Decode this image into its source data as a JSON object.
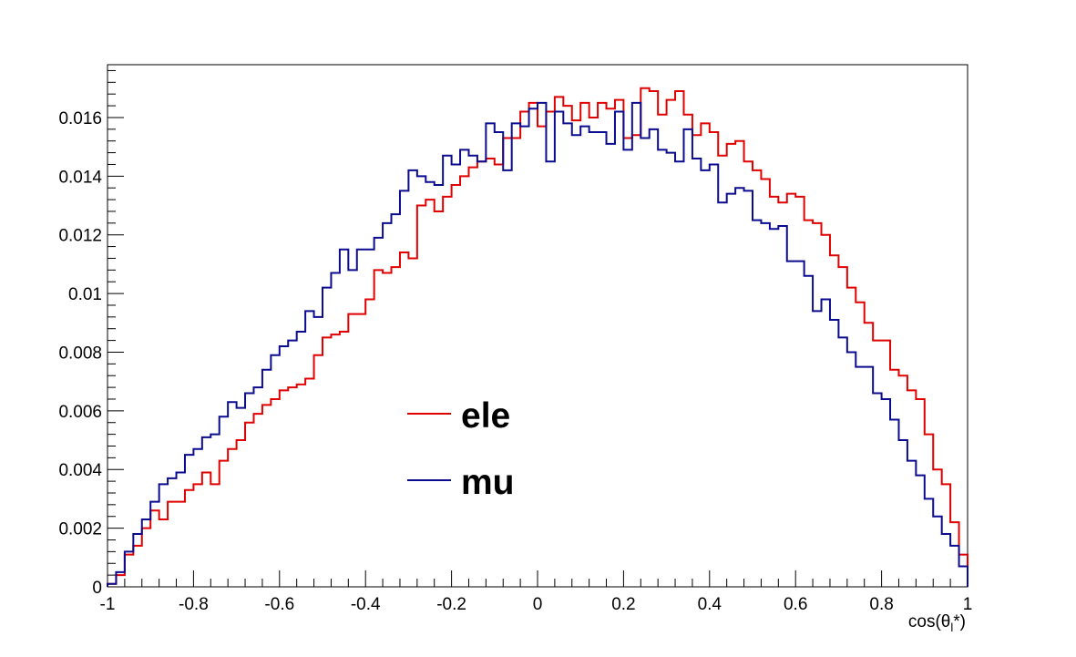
{
  "chart_data": {
    "type": "line",
    "step": true,
    "title": "",
    "xlabel_main": "cos(θ",
    "xlabel_sub": "l",
    "xlabel_end": "*)",
    "ylabel": "",
    "xlim": [
      -1,
      1
    ],
    "ylim": [
      0,
      0.0178
    ],
    "x_ticks": [
      -1,
      -0.8,
      -0.6,
      -0.4,
      -0.2,
      0,
      0.2,
      0.4,
      0.6,
      0.8,
      1
    ],
    "x_tick_labels": [
      "-1",
      "-0.8",
      "-0.6",
      "-0.4",
      "-0.2",
      "0",
      "0.2",
      "0.4",
      "0.6",
      "0.8",
      "1"
    ],
    "y_ticks": [
      0,
      0.002,
      0.004,
      0.006,
      0.008,
      0.01,
      0.012,
      0.014,
      0.016
    ],
    "y_tick_labels": [
      "0",
      "0.002",
      "0.004",
      "0.006",
      "0.008",
      "0.01",
      "0.012",
      "0.014",
      "0.016"
    ],
    "grid": false,
    "legend_position": "center-left",
    "bin_edges": {
      "start": -1,
      "stop": 1,
      "count": 100
    },
    "series": [
      {
        "name": "ele",
        "color": "#e00000",
        "values": [
          0.0001,
          0.0004,
          0.0011,
          0.0014,
          0.002,
          0.0026,
          0.0023,
          0.0029,
          0.0029,
          0.0033,
          0.0035,
          0.0039,
          0.0035,
          0.0043,
          0.0047,
          0.005,
          0.0056,
          0.0059,
          0.0062,
          0.0064,
          0.0067,
          0.0068,
          0.0069,
          0.0071,
          0.0079,
          0.0085,
          0.0086,
          0.0087,
          0.0093,
          0.0093,
          0.0098,
          0.0108,
          0.0107,
          0.0109,
          0.0114,
          0.0112,
          0.013,
          0.0132,
          0.0128,
          0.0133,
          0.0137,
          0.014,
          0.0143,
          0.0145,
          0.0146,
          0.0144,
          0.0153,
          0.0153,
          0.0162,
          0.0165,
          0.0157,
          0.0162,
          0.0167,
          0.0164,
          0.0159,
          0.0165,
          0.016,
          0.0165,
          0.0163,
          0.0166,
          0.0153,
          0.0154,
          0.017,
          0.0169,
          0.0161,
          0.0166,
          0.0169,
          0.0161,
          0.0154,
          0.0158,
          0.0155,
          0.0147,
          0.0151,
          0.0152,
          0.0145,
          0.0142,
          0.0139,
          0.0133,
          0.0131,
          0.0134,
          0.0133,
          0.0125,
          0.0124,
          0.012,
          0.0113,
          0.0109,
          0.0102,
          0.0097,
          0.009,
          0.0084,
          0.0084,
          0.0074,
          0.0072,
          0.0067,
          0.0064,
          0.0052,
          0.004,
          0.0035,
          0.0022,
          0.0011,
          0.0003
        ],
        "last_value_note": ""
      },
      {
        "name": "mu",
        "color": "#0b0b8f",
        "values": [
          0.0001,
          0.0005,
          0.0012,
          0.0018,
          0.0023,
          0.0029,
          0.0035,
          0.0037,
          0.0039,
          0.0045,
          0.0047,
          0.0051,
          0.0052,
          0.0058,
          0.0063,
          0.0061,
          0.0066,
          0.0068,
          0.0074,
          0.0079,
          0.0082,
          0.0084,
          0.0087,
          0.0094,
          0.0092,
          0.0102,
          0.0107,
          0.0115,
          0.0108,
          0.0115,
          0.0115,
          0.0119,
          0.0124,
          0.0127,
          0.0135,
          0.0142,
          0.014,
          0.0138,
          0.0137,
          0.0147,
          0.0144,
          0.0149,
          0.0147,
          0.0145,
          0.0158,
          0.0155,
          0.0142,
          0.0158,
          0.0157,
          0.0163,
          0.0165,
          0.0145,
          0.0162,
          0.0158,
          0.0154,
          0.0157,
          0.0155,
          0.0155,
          0.0151,
          0.0162,
          0.0149,
          0.0165,
          0.0153,
          0.0156,
          0.0149,
          0.0148,
          0.0145,
          0.0156,
          0.0146,
          0.0142,
          0.0144,
          0.0131,
          0.0134,
          0.0136,
          0.0135,
          0.0125,
          0.0124,
          0.0122,
          0.0123,
          0.0111,
          0.0111,
          0.0106,
          0.0094,
          0.0098,
          0.0091,
          0.0085,
          0.008,
          0.0075,
          0.0075,
          0.0066,
          0.0064,
          0.0057,
          0.005,
          0.0043,
          0.0038,
          0.003,
          0.0024,
          0.0018,
          0.0014,
          0.0007,
          0.0002
        ]
      }
    ]
  }
}
